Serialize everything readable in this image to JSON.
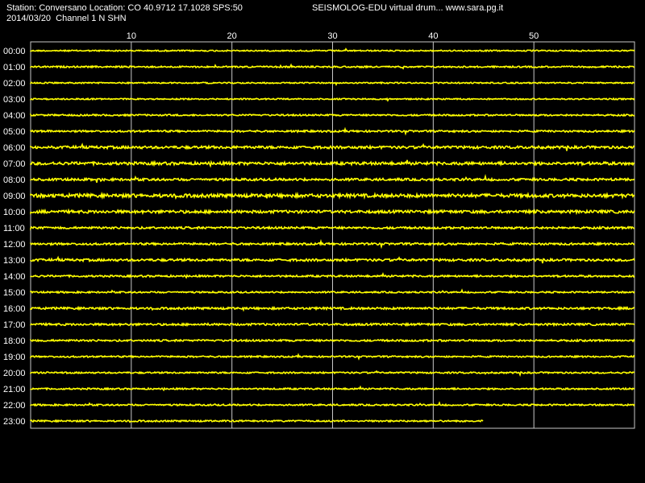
{
  "header": {
    "station_line": "Station: Conversano Location: CO 40.9712 17.1028 SPS:50",
    "date_channel": "2014/03/20  Channel 1 N SHN",
    "brand": "SEISMOLOG-EDU virtual drum... www.sara.pg.it"
  },
  "colors": {
    "background": "#000000",
    "trace": "#ffff00",
    "grid": "#c8c8c8",
    "text": "#ffffff"
  },
  "chart_data": {
    "type": "line",
    "title": "",
    "xlabel": "",
    "ylabel": "",
    "x_ticks": [
      "10",
      "20",
      "30",
      "40",
      "50"
    ],
    "xlim": [
      0,
      60
    ],
    "grid": true,
    "rows": [
      "00:00",
      "01:00",
      "02:00",
      "03:00",
      "04:00",
      "05:00",
      "06:00",
      "07:00",
      "08:00",
      "09:00",
      "10:00",
      "11:00",
      "12:00",
      "13:00",
      "14:00",
      "15:00",
      "16:00",
      "17:00",
      "18:00",
      "19:00",
      "20:00",
      "21:00",
      "22:00",
      "23:00"
    ],
    "last_row_end_minute": 45,
    "noise_level": [
      0.5,
      0.6,
      0.5,
      0.5,
      0.6,
      0.7,
      1.0,
      1.1,
      0.9,
      1.3,
      1.1,
      0.8,
      0.8,
      0.9,
      0.7,
      0.6,
      0.8,
      0.8,
      0.7,
      0.6,
      0.6,
      0.6,
      0.6,
      0.6
    ]
  }
}
